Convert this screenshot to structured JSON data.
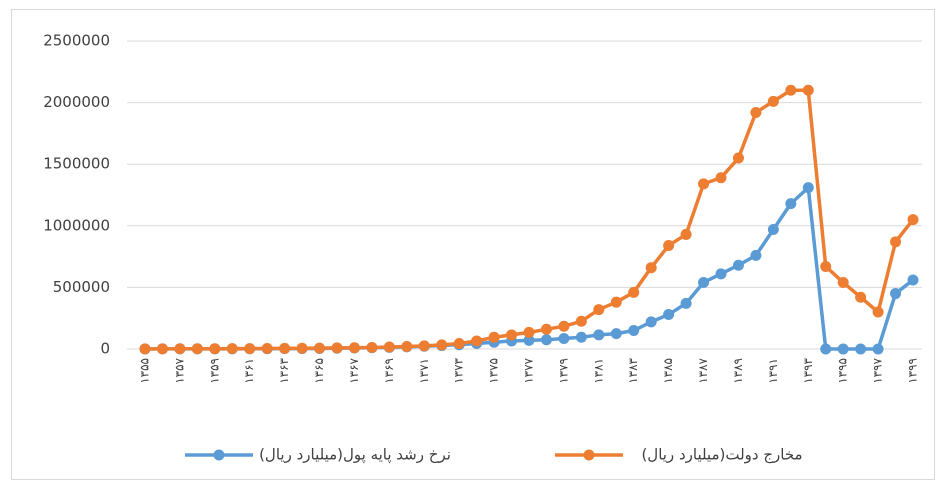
{
  "chart_data": {
    "type": "line",
    "categories": [
      "۱۳۵۵",
      null,
      "۱۳۵۷",
      null,
      "۱۳۵۹",
      null,
      "۱۳۶۱",
      null,
      "۱۳۶۳",
      null,
      "۱۳۶۵",
      null,
      "۱۳۶۷",
      null,
      "۱۳۶۹",
      null,
      "۱۳۷۱",
      null,
      "۱۳۷۳",
      null,
      "۱۳۷۵",
      null,
      "۱۳۷۷",
      null,
      "۱۳۷۹",
      null,
      "۱۳۸۱",
      null,
      "۱۳۸۳",
      null,
      "۱۳۸۵",
      null,
      "۱۳۸۷",
      null,
      "۱۳۸۹",
      null,
      "۱۳۹۱",
      null,
      "۱۳۹۳",
      null,
      "۱۳۹۵",
      null,
      "۱۳۹۷",
      null,
      "۱۳۹۹"
    ],
    "series": [
      {
        "name": "نرخ رشد پایه پول(میلیارد ریال)",
        "color": "#5b9bd5",
        "values": [
          500,
          700,
          900,
          1000,
          1200,
          1500,
          1800,
          2200,
          2800,
          3500,
          4500,
          6000,
          8000,
          10000,
          13000,
          17000,
          22000,
          28000,
          35000,
          45000,
          55000,
          65000,
          70000,
          75000,
          85000,
          95000,
          115000,
          125000,
          150000,
          220000,
          280000,
          370000,
          540000,
          610000,
          680000,
          760000,
          970000,
          1180000,
          1310000,
          0,
          0,
          0,
          0,
          450000,
          560000
        ]
      },
      {
        "name": "مخارج دولت(میلیارد ریال)",
        "color": "#ed7d31",
        "values": [
          1000,
          1500,
          2000,
          2000,
          2500,
          3000,
          3500,
          4000,
          5000,
          6000,
          7000,
          9000,
          10000,
          12000,
          16000,
          20000,
          25000,
          33000,
          45000,
          65000,
          95000,
          115000,
          135000,
          160000,
          185000,
          225000,
          320000,
          380000,
          460000,
          660000,
          840000,
          930000,
          1340000,
          1390000,
          1550000,
          1920000,
          2010000,
          2100000,
          2100000,
          670000,
          540000,
          420000,
          300000,
          870000,
          1050000
        ]
      }
    ],
    "ylim": [
      0,
      2500000
    ],
    "yticks": [
      0,
      500000,
      1000000,
      1500000,
      2000000,
      2500000
    ],
    "grid": true,
    "legend": "bottom"
  }
}
